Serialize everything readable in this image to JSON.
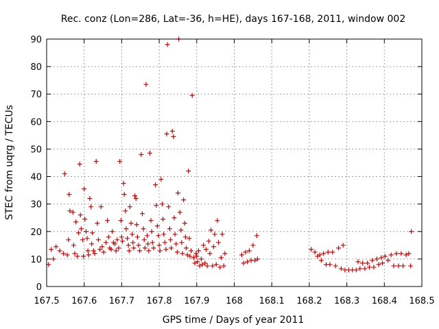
{
  "chart_data": {
    "type": "scatter",
    "title": "Rec. conz (Lon=286, Lat=-36, h=HE), days 167-168, 2011, window 002",
    "xlabel": "GPS time / Days of year 2011",
    "ylabel": "STEC from uqrg / TECUs",
    "xlim": [
      167.5,
      168.5
    ],
    "ylim": [
      0,
      90
    ],
    "xticks": [
      "167.5",
      "167.6",
      "167.7",
      "167.8",
      "167.9",
      "168",
      "168.1",
      "168.2",
      "168.3",
      "168.4",
      "168.5"
    ],
    "yticks": [
      "0",
      "10",
      "20",
      "30",
      "40",
      "50",
      "60",
      "70",
      "80",
      "90"
    ],
    "grid": true,
    "marker": "+",
    "color": "#cc0000",
    "points": [
      [
        167.505,
        8
      ],
      [
        167.512,
        13.5
      ],
      [
        167.518,
        10
      ],
      [
        167.525,
        14.5
      ],
      [
        167.535,
        13
      ],
      [
        167.545,
        12
      ],
      [
        167.548,
        41
      ],
      [
        167.555,
        11.5
      ],
      [
        167.558,
        17
      ],
      [
        167.56,
        33.5
      ],
      [
        167.562,
        27.5
      ],
      [
        167.57,
        27
      ],
      [
        167.572,
        15
      ],
      [
        167.575,
        12
      ],
      [
        167.578,
        23.5
      ],
      [
        167.582,
        11
      ],
      [
        167.585,
        19.5
      ],
      [
        167.588,
        44.5
      ],
      [
        167.59,
        26
      ],
      [
        167.592,
        21
      ],
      [
        167.596,
        17
      ],
      [
        167.598,
        11
      ],
      [
        167.6,
        35.5
      ],
      [
        167.602,
        24.5
      ],
      [
        167.605,
        20
      ],
      [
        167.608,
        17.5
      ],
      [
        167.61,
        13
      ],
      [
        167.612,
        11.5
      ],
      [
        167.615,
        32
      ],
      [
        167.618,
        29
      ],
      [
        167.62,
        15.5
      ],
      [
        167.622,
        19.5
      ],
      [
        167.625,
        13
      ],
      [
        167.628,
        12
      ],
      [
        167.632,
        45.5
      ],
      [
        167.635,
        23
      ],
      [
        167.638,
        17
      ],
      [
        167.642,
        13.5
      ],
      [
        167.645,
        29
      ],
      [
        167.648,
        14.5
      ],
      [
        167.652,
        12.5
      ],
      [
        167.658,
        16
      ],
      [
        167.662,
        24
      ],
      [
        167.665,
        18
      ],
      [
        167.668,
        14
      ],
      [
        167.672,
        13.5
      ],
      [
        167.675,
        20
      ],
      [
        167.678,
        16
      ],
      [
        167.682,
        15.5
      ],
      [
        167.685,
        13
      ],
      [
        167.688,
        17
      ],
      [
        167.692,
        14
      ],
      [
        167.695,
        45.5
      ],
      [
        167.698,
        24
      ],
      [
        167.7,
        18
      ],
      [
        167.702,
        16.5
      ],
      [
        167.705,
        37.5
      ],
      [
        167.707,
        33.5
      ],
      [
        167.71,
        27.5
      ],
      [
        167.712,
        21
      ],
      [
        167.715,
        17.5
      ],
      [
        167.718,
        15
      ],
      [
        167.72,
        13
      ],
      [
        167.722,
        29
      ],
      [
        167.725,
        23
      ],
      [
        167.728,
        19
      ],
      [
        167.73,
        16
      ],
      [
        167.732,
        14
      ],
      [
        167.735,
        33
      ],
      [
        167.738,
        32
      ],
      [
        167.74,
        22.5
      ],
      [
        167.742,
        18
      ],
      [
        167.745,
        15
      ],
      [
        167.748,
        13
      ],
      [
        167.752,
        48
      ],
      [
        167.755,
        26.5
      ],
      [
        167.758,
        21
      ],
      [
        167.76,
        17
      ],
      [
        167.762,
        14
      ],
      [
        167.765,
        73.5
      ],
      [
        167.768,
        18.5
      ],
      [
        167.77,
        15.5
      ],
      [
        167.772,
        13
      ],
      [
        167.775,
        48.5
      ],
      [
        167.778,
        24
      ],
      [
        167.78,
        20
      ],
      [
        167.782,
        16
      ],
      [
        167.785,
        14
      ],
      [
        167.79,
        37
      ],
      [
        167.792,
        29.5
      ],
      [
        167.795,
        22
      ],
      [
        167.798,
        18.5
      ],
      [
        167.8,
        15
      ],
      [
        167.802,
        13
      ],
      [
        167.805,
        39
      ],
      [
        167.808,
        30
      ],
      [
        167.81,
        24.5
      ],
      [
        167.812,
        19
      ],
      [
        167.815,
        16
      ],
      [
        167.818,
        13.5
      ],
      [
        167.82,
        55.5
      ],
      [
        167.822,
        88
      ],
      [
        167.825,
        29
      ],
      [
        167.828,
        21
      ],
      [
        167.83,
        17
      ],
      [
        167.832,
        14
      ],
      [
        167.835,
        56.5
      ],
      [
        167.838,
        54.5
      ],
      [
        167.84,
        25
      ],
      [
        167.842,
        19
      ],
      [
        167.845,
        15.5
      ],
      [
        167.848,
        12.5
      ],
      [
        167.85,
        34
      ],
      [
        167.852,
        90
      ],
      [
        167.855,
        27
      ],
      [
        167.858,
        20.5
      ],
      [
        167.86,
        16
      ],
      [
        167.862,
        12
      ],
      [
        167.865,
        31.5
      ],
      [
        167.868,
        23
      ],
      [
        167.87,
        18
      ],
      [
        167.872,
        14
      ],
      [
        167.875,
        11.5
      ],
      [
        167.878,
        42
      ],
      [
        167.88,
        17.5
      ],
      [
        167.882,
        11
      ],
      [
        167.885,
        13
      ],
      [
        167.888,
        69.5
      ],
      [
        167.892,
        10.5
      ],
      [
        167.895,
        8.5
      ],
      [
        167.898,
        12
      ],
      [
        167.9,
        11
      ],
      [
        167.902,
        9
      ],
      [
        167.905,
        13
      ],
      [
        167.908,
        7.5
      ],
      [
        167.912,
        10
      ],
      [
        167.915,
        8
      ],
      [
        167.918,
        15
      ],
      [
        167.922,
        8.5
      ],
      [
        167.925,
        13.5
      ],
      [
        167.928,
        7.5
      ],
      [
        167.932,
        16.5
      ],
      [
        167.935,
        12
      ],
      [
        167.938,
        20.5
      ],
      [
        167.942,
        7.5
      ],
      [
        167.945,
        14.5
      ],
      [
        167.948,
        19
      ],
      [
        167.952,
        8
      ],
      [
        167.955,
        24
      ],
      [
        167.958,
        16
      ],
      [
        167.962,
        7
      ],
      [
        167.965,
        10.5
      ],
      [
        167.968,
        19
      ],
      [
        167.972,
        7.5
      ],
      [
        167.975,
        12
      ],
      [
        168.02,
        11.5
      ],
      [
        168.025,
        8.5
      ],
      [
        168.03,
        12.5
      ],
      [
        168.035,
        9
      ],
      [
        168.04,
        13
      ],
      [
        168.045,
        9.5
      ],
      [
        168.05,
        15
      ],
      [
        168.055,
        9.5
      ],
      [
        168.06,
        18.5
      ],
      [
        168.062,
        10
      ],
      [
        168.205,
        13.5
      ],
      [
        168.215,
        12.5
      ],
      [
        168.222,
        11
      ],
      [
        168.228,
        11.5
      ],
      [
        168.232,
        9.5
      ],
      [
        168.238,
        12
      ],
      [
        168.245,
        8
      ],
      [
        168.25,
        12.5
      ],
      [
        168.255,
        8
      ],
      [
        168.262,
        12.5
      ],
      [
        168.27,
        7.5
      ],
      [
        168.278,
        14
      ],
      [
        168.285,
        6.5
      ],
      [
        168.29,
        15
      ],
      [
        168.295,
        6
      ],
      [
        168.305,
        6
      ],
      [
        168.315,
        6
      ],
      [
        168.325,
        6
      ],
      [
        168.33,
        9
      ],
      [
        168.335,
        6.5
      ],
      [
        168.342,
        8.5
      ],
      [
        168.348,
        6.5
      ],
      [
        168.355,
        8.5
      ],
      [
        168.36,
        7
      ],
      [
        168.368,
        9.5
      ],
      [
        168.372,
        7
      ],
      [
        168.38,
        10
      ],
      [
        168.385,
        8
      ],
      [
        168.392,
        10.5
      ],
      [
        168.395,
        8.5
      ],
      [
        168.402,
        11
      ],
      [
        168.41,
        9.5
      ],
      [
        168.418,
        11.5
      ],
      [
        168.425,
        7.5
      ],
      [
        168.432,
        12
      ],
      [
        168.438,
        7.5
      ],
      [
        168.445,
        12
      ],
      [
        168.45,
        7.5
      ],
      [
        168.458,
        11.5
      ],
      [
        168.465,
        12
      ],
      [
        168.472,
        20
      ],
      [
        168.47,
        7.5
      ]
    ]
  }
}
